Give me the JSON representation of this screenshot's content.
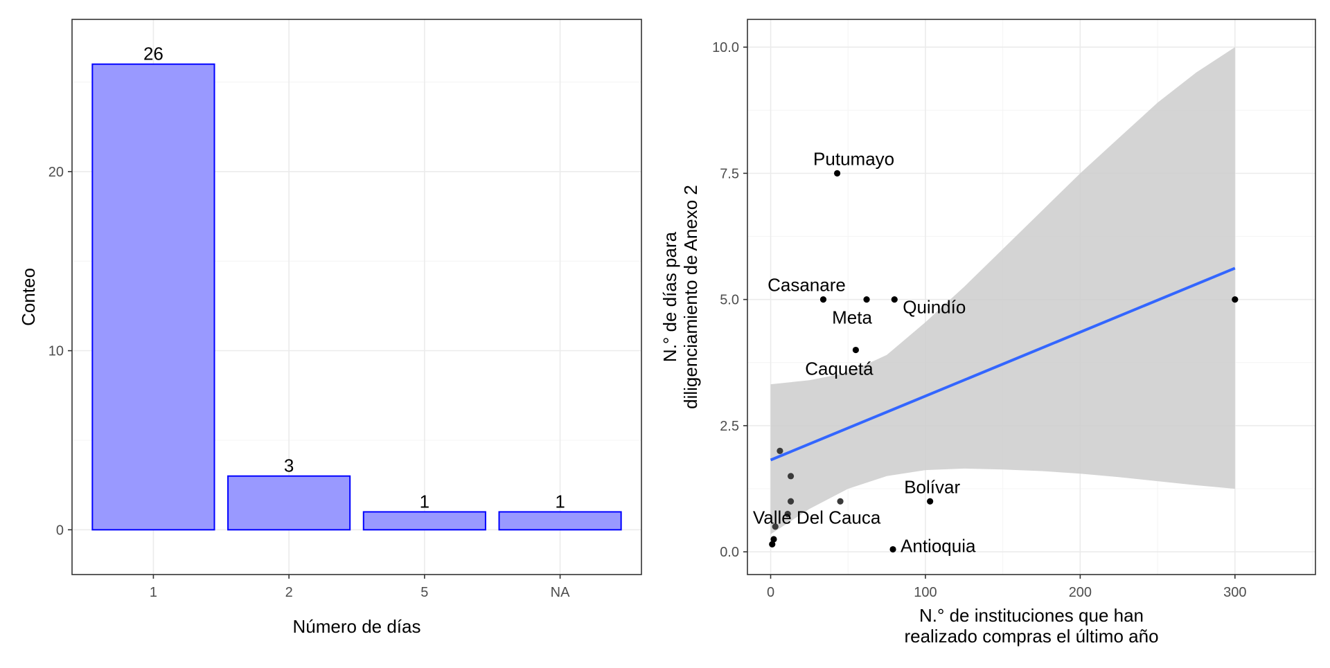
{
  "chart_data": [
    {
      "type": "bar",
      "categories": [
        "1",
        "2",
        "5",
        "NA"
      ],
      "values": [
        26,
        3,
        1,
        1
      ],
      "data_labels": [
        "26",
        "3",
        "1",
        "1"
      ],
      "xlabel": "Número de días",
      "ylabel": "Conteo",
      "ylim": [
        -2.5,
        28.5
      ],
      "yticks": [
        0,
        10,
        20
      ],
      "ytick_labels": [
        "0",
        "10",
        "20"
      ],
      "grid": true,
      "bar_fill": "#9999ff",
      "bar_stroke": "#0000ff"
    },
    {
      "type": "scatter",
      "xlabel_lines": [
        "N.° de instituciones que han",
        "realizado compras el último año"
      ],
      "ylabel_lines": [
        "N.° de días para",
        "diligenciamiento de Anexo 2"
      ],
      "xlim": [
        -15,
        352
      ],
      "ylim": [
        -0.45,
        10.55
      ],
      "xticks": [
        0,
        100,
        200,
        300
      ],
      "xtick_labels": [
        "0",
        "100",
        "200",
        "300"
      ],
      "yticks": [
        0,
        2.5,
        5,
        7.5,
        10
      ],
      "ytick_labels": [
        "0.0",
        "2.5",
        "5.0",
        "7.5",
        "10.0"
      ],
      "grid": true,
      "points": [
        {
          "x": 43,
          "y": 7.5,
          "label": "Putumayo"
        },
        {
          "x": 34,
          "y": 5,
          "label": "Casanare"
        },
        {
          "x": 62,
          "y": 5,
          "label": "Meta"
        },
        {
          "x": 80,
          "y": 5,
          "label": "Quindío"
        },
        {
          "x": 55,
          "y": 4,
          "label": "Caquetá"
        },
        {
          "x": 300,
          "y": 5,
          "label": ""
        },
        {
          "x": 6,
          "y": 2,
          "label": ""
        },
        {
          "x": 13,
          "y": 1.5,
          "label": ""
        },
        {
          "x": 13,
          "y": 1,
          "label": ""
        },
        {
          "x": 45,
          "y": 1,
          "label": ""
        },
        {
          "x": 103,
          "y": 1,
          "label": "Bolívar"
        },
        {
          "x": 11,
          "y": 0.75,
          "label": "Valle Del Cauca"
        },
        {
          "x": 3,
          "y": 0.5,
          "label": ""
        },
        {
          "x": 2,
          "y": 0.25,
          "label": ""
        },
        {
          "x": 1,
          "y": 0.15,
          "label": ""
        },
        {
          "x": 79,
          "y": 0.05,
          "label": "Antioquia"
        }
      ],
      "fit_line": {
        "x": [
          0,
          300
        ],
        "y": [
          1.82,
          5.62
        ],
        "color": "#3366ff"
      },
      "confidence_band": {
        "x": [
          0,
          25,
          50,
          75,
          100,
          125,
          150,
          175,
          200,
          225,
          250,
          275,
          300
        ],
        "lower": [
          0.35,
          0.85,
          1.25,
          1.5,
          1.62,
          1.65,
          1.63,
          1.6,
          1.55,
          1.48,
          1.4,
          1.32,
          1.25
        ],
        "upper": [
          3.32,
          3.4,
          3.55,
          3.9,
          4.55,
          5.25,
          6.0,
          6.75,
          7.5,
          8.2,
          8.9,
          9.5,
          10.0
        ],
        "color": "#cccccc"
      }
    }
  ]
}
